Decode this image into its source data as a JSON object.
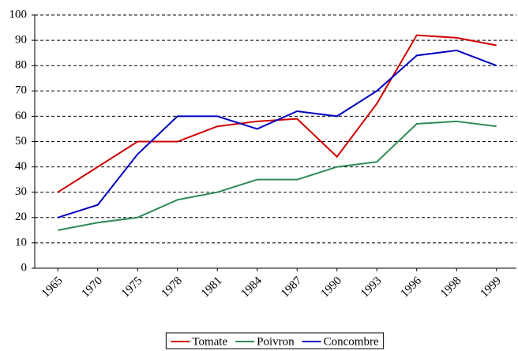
{
  "chart_data": {
    "type": "line",
    "categories": [
      "1965",
      "1970",
      "1975",
      "1978",
      "1981",
      "1984",
      "1987",
      "1990",
      "1993",
      "1996",
      "1998",
      "1999"
    ],
    "series": [
      {
        "name": "Tomate",
        "color": "#d00000",
        "values": [
          30,
          40,
          50,
          50,
          56,
          58,
          59,
          44,
          65,
          92,
          91,
          88
        ]
      },
      {
        "name": "Poivron",
        "color": "#2e8b57",
        "values": [
          15,
          18,
          20,
          27,
          30,
          35,
          35,
          40,
          42,
          57,
          58,
          56
        ]
      },
      {
        "name": "Concombre",
        "color": "#0000c0",
        "values": [
          20,
          25,
          45,
          60,
          60,
          55,
          62,
          60,
          70,
          84,
          86,
          80
        ]
      }
    ],
    "ylim": [
      0,
      100
    ],
    "yticks": [
      0,
      10,
      20,
      30,
      40,
      50,
      60,
      70,
      80,
      90,
      100
    ],
    "grid": true,
    "legend": "bottom"
  }
}
